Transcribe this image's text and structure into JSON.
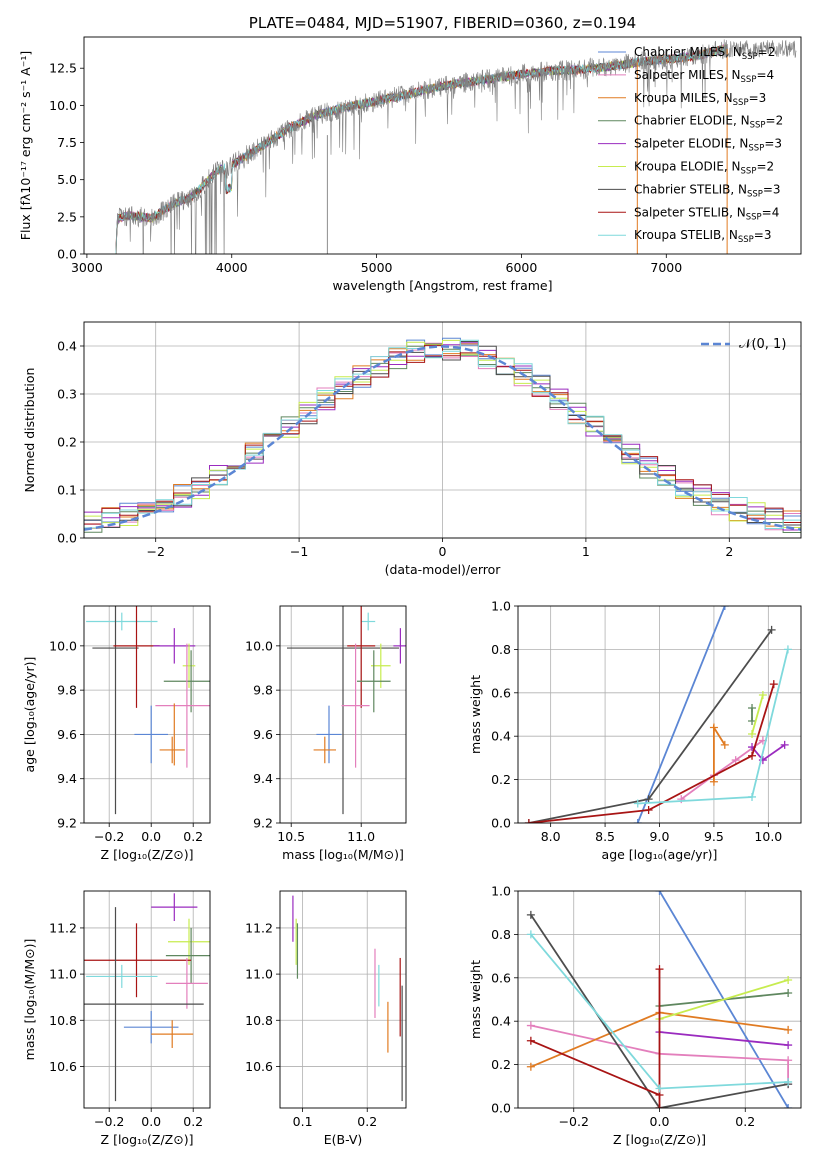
{
  "colors": {
    "c_miles": "#5b86d4",
    "s_miles": "#e37fbc",
    "k_miles": "#e07b22",
    "c_elodie": "#5f875f",
    "s_elodie": "#9a2bbf",
    "k_elodie": "#c7ec4f",
    "c_stelib": "#4d4d4d",
    "s_stelib": "#a81414",
    "k_stelib": "#7fd9dc",
    "spectrum": "#808080",
    "normal": "#5b86d4"
  },
  "chart_data": [
    {
      "id": "spectrum",
      "type": "line",
      "title": "PLATE=0484, MJD=51907, FIBERID=0360, z=0.194",
      "xlabel": "wavelength [Angstrom, rest frame]",
      "ylabel": "Flux [fλ10⁻¹⁷ erg cm⁻² s⁻¹ A⁻¹]",
      "xlim": [
        2980,
        7930
      ],
      "ylim": [
        0,
        14.6
      ],
      "xticks": [
        "3000",
        "4000",
        "5000",
        "6000",
        "7000"
      ],
      "yticks": [
        "0.0",
        "2.5",
        "5.0",
        "7.5",
        "10.0",
        "12.5"
      ],
      "legend_position": "top-right",
      "legend": [
        {
          "label": "Chabrier MILES, N",
          "sub": "SSP",
          "tail": "=2",
          "color": "c_miles"
        },
        {
          "label": "Salpeter MILES, N",
          "sub": "SSP",
          "tail": "=4",
          "color": "s_miles"
        },
        {
          "label": "Kroupa MILES, N",
          "sub": "SSP",
          "tail": "=3",
          "color": "k_miles"
        },
        {
          "label": "Chabrier ELODIE, N",
          "sub": "SSP",
          "tail": "=2",
          "color": "c_elodie"
        },
        {
          "label": "Salpeter ELODIE, N",
          "sub": "SSP",
          "tail": "=3",
          "color": "s_elodie"
        },
        {
          "label": "Kroupa ELODIE, N",
          "sub": "SSP",
          "tail": "=2",
          "color": "k_elodie"
        },
        {
          "label": "Chabrier STELIB, N",
          "sub": "SSP",
          "tail": "=3",
          "color": "c_stelib"
        },
        {
          "label": "Salpeter STELIB, N",
          "sub": "SSP",
          "tail": "=4",
          "color": "s_stelib"
        },
        {
          "label": "Kroupa STELIB, N",
          "sub": "SSP",
          "tail": "=3",
          "color": "k_stelib"
        }
      ],
      "continuum": {
        "x": [
          3200,
          3210,
          3300,
          3450,
          3550,
          3650,
          3720,
          3800,
          3900,
          4000,
          4200,
          4400,
          4600,
          4800,
          5000,
          5200,
          5400,
          5600,
          5800,
          6000,
          6200,
          6400,
          6600,
          6800,
          7000,
          7200,
          7400
        ],
        "y": [
          0,
          2.4,
          2.6,
          2.4,
          3.1,
          3.6,
          3.8,
          4.6,
          5.6,
          6.0,
          7.2,
          8.5,
          9.4,
          9.9,
          10.3,
          10.7,
          11.2,
          11.5,
          11.8,
          12.1,
          12.3,
          12.4,
          12.6,
          12.9,
          13.1,
          13.3,
          13.8
        ]
      }
    },
    {
      "id": "residuals",
      "type": "line",
      "xlabel": "(data-model)/error",
      "ylabel": "Normed distribution",
      "xlim": [
        -2.5,
        2.5
      ],
      "ylim": [
        0,
        0.45
      ],
      "xticks": [
        "−2",
        "−1",
        "0",
        "1",
        "2"
      ],
      "yticks": [
        "0.0",
        "0.1",
        "0.2",
        "0.3",
        "0.4"
      ],
      "grid": true,
      "legend_position": "top-right",
      "legend": [
        {
          "label": "𝒩(0, 1)",
          "color": "normal",
          "dashed": true
        }
      ],
      "histograms": {
        "bins": 40,
        "curves": [
          {
            "color": "c_miles",
            "seed": 1
          },
          {
            "color": "s_miles",
            "seed": 2
          },
          {
            "color": "k_miles",
            "seed": 3
          },
          {
            "color": "c_elodie",
            "seed": 4
          },
          {
            "color": "s_elodie",
            "seed": 5
          },
          {
            "color": "k_elodie",
            "seed": 6
          },
          {
            "color": "c_stelib",
            "seed": 7
          },
          {
            "color": "s_stelib",
            "seed": 8
          },
          {
            "color": "k_stelib",
            "seed": 9
          }
        ]
      }
    },
    {
      "id": "z_age",
      "type": "scatter",
      "xlabel": "Z [log₁₀(Z/Z⊙)]",
      "ylabel": "age  [log₁₀(age/yr)]",
      "xlim": [
        -0.32,
        0.28
      ],
      "ylim": [
        9.2,
        10.18
      ],
      "xticks": [
        "−0.2",
        "0.0",
        "0.2"
      ],
      "yticks": [
        "9.2",
        "9.4",
        "9.6",
        "9.8",
        "10.0"
      ],
      "grid": true,
      "points": [
        {
          "color": "k_stelib",
          "x": -0.14,
          "xerr": 0.17,
          "y": 10.11,
          "yerr": 0.04
        },
        {
          "color": "c_stelib",
          "x": -0.17,
          "xerr": 0.11,
          "y": 9.99,
          "yerr": 0.75
        },
        {
          "color": "s_stelib",
          "x": -0.07,
          "xerr": 0.11,
          "y": 10.0,
          "yerr": 0.28
        },
        {
          "color": "s_elodie",
          "x": 0.11,
          "xerr": 0.1,
          "y": 10.0,
          "yerr": 0.08
        },
        {
          "color": "k_elodie",
          "x": 0.18,
          "xerr": 0.03,
          "y": 9.91,
          "yerr": 0.1
        },
        {
          "color": "c_elodie",
          "x": 0.19,
          "xerr": 0.13,
          "y": 9.84,
          "yerr": 0.14
        },
        {
          "color": "s_miles",
          "x": 0.17,
          "xerr": 0.15,
          "y": 9.73,
          "yerr": 0.28
        },
        {
          "color": "c_miles",
          "x": 0.0,
          "xerr": 0.08,
          "y": 9.6,
          "yerr": 0.13
        },
        {
          "color": "k_miles",
          "x": 0.1,
          "xerr": 0.06,
          "y": 9.53,
          "yerr": 0.06
        },
        {
          "color": "k_miles",
          "x": 0.11,
          "xerr": 0.0,
          "y": 9.6,
          "yerr": 0.14
        }
      ]
    },
    {
      "id": "mass_age",
      "type": "scatter",
      "xlabel": "mass [log₁₀(M/M⊙)]",
      "ylabel": "",
      "xlim": [
        10.42,
        11.32
      ],
      "ylim": [
        9.2,
        10.18
      ],
      "xticks": [
        "10.5",
        "11.0"
      ],
      "yticks": [
        "9.2",
        "9.4",
        "9.6",
        "9.8",
        "10.0"
      ],
      "grid": true,
      "points": [
        {
          "color": "k_stelib",
          "x": 11.05,
          "xerr": 0.05,
          "y": 10.11,
          "yerr": 0.04
        },
        {
          "color": "c_stelib",
          "x": 10.87,
          "xerr": 0.4,
          "y": 9.99,
          "yerr": 0.75
        },
        {
          "color": "s_stelib",
          "x": 11.0,
          "xerr": 0.1,
          "y": 10.0,
          "yerr": 0.28
        },
        {
          "color": "s_elodie",
          "x": 11.28,
          "xerr": 0.05,
          "y": 10.0,
          "yerr": 0.08
        },
        {
          "color": "k_elodie",
          "x": 11.14,
          "xerr": 0.07,
          "y": 9.91,
          "yerr": 0.1
        },
        {
          "color": "c_elodie",
          "x": 11.09,
          "xerr": 0.12,
          "y": 9.84,
          "yerr": 0.14
        },
        {
          "color": "s_miles",
          "x": 10.96,
          "xerr": 0.1,
          "y": 9.73,
          "yerr": 0.28
        },
        {
          "color": "c_miles",
          "x": 10.77,
          "xerr": 0.09,
          "y": 9.6,
          "yerr": 0.13
        },
        {
          "color": "k_miles",
          "x": 10.74,
          "xerr": 0.08,
          "y": 9.53,
          "yerr": 0.06
        }
      ]
    },
    {
      "id": "age_weight",
      "type": "line",
      "xlabel": "age  [log₁₀(age/yr)]",
      "ylabel": "mass weight",
      "xlim": [
        7.7,
        10.3
      ],
      "ylim": [
        0,
        1.0
      ],
      "xticks": [
        "8.0",
        "8.5",
        "9.0",
        "9.5",
        "10.0"
      ],
      "yticks": [
        "0.0",
        "0.2",
        "0.4",
        "0.6",
        "0.8",
        "1.0"
      ],
      "grid": true,
      "series": [
        {
          "color": "c_miles",
          "x": [
            8.8,
            9.6
          ],
          "y": [
            0.0,
            1.0
          ]
        },
        {
          "color": "s_miles",
          "x": [
            9.2,
            9.5,
            9.7,
            9.95
          ],
          "y": [
            0.11,
            0.22,
            0.29,
            0.38
          ]
        },
        {
          "color": "k_miles",
          "x": [
            9.5,
            9.5,
            9.6
          ],
          "y": [
            0.19,
            0.44,
            0.36
          ]
        },
        {
          "color": "c_elodie",
          "x": [
            9.85,
            9.85
          ],
          "y": [
            0.47,
            0.53
          ]
        },
        {
          "color": "s_elodie",
          "x": [
            9.85,
            9.95,
            10.15
          ],
          "y": [
            0.35,
            0.29,
            0.36
          ]
        },
        {
          "color": "k_elodie",
          "x": [
            9.85,
            9.95
          ],
          "y": [
            0.41,
            0.59
          ]
        },
        {
          "color": "c_stelib",
          "x": [
            7.8,
            8.9,
            10.03
          ],
          "y": [
            0.0,
            0.11,
            0.89
          ]
        },
        {
          "color": "s_stelib",
          "x": [
            7.8,
            8.9,
            9.85,
            10.05
          ],
          "y": [
            0.0,
            0.06,
            0.31,
            0.64
          ]
        },
        {
          "color": "k_stelib",
          "x": [
            8.8,
            9.85,
            10.18
          ],
          "y": [
            0.09,
            0.12,
            0.8
          ]
        }
      ]
    },
    {
      "id": "z_mass",
      "type": "scatter",
      "xlabel": "Z [log₁₀(Z/Z⊙)]",
      "ylabel": "mass [log₁₀(M/M⊙)]",
      "xlim": [
        -0.32,
        0.28
      ],
      "ylim": [
        10.42,
        11.36
      ],
      "xticks": [
        "−0.2",
        "0.0",
        "0.2"
      ],
      "yticks": [
        "10.6",
        "10.8",
        "11.0",
        "11.2"
      ],
      "grid": true,
      "points": [
        {
          "color": "s_elodie",
          "x": 0.11,
          "xerr": 0.11,
          "y": 11.29,
          "yerr": 0.06
        },
        {
          "color": "k_elodie",
          "x": 0.18,
          "xerr": 0.1,
          "y": 11.14,
          "yerr": 0.1
        },
        {
          "color": "c_elodie",
          "x": 0.19,
          "xerr": 0.12,
          "y": 11.08,
          "yerr": 0.12
        },
        {
          "color": "s_stelib",
          "x": -0.07,
          "xerr": 0.26,
          "y": 11.06,
          "yerr": 0.16
        },
        {
          "color": "k_stelib",
          "x": -0.14,
          "xerr": 0.17,
          "y": 10.99,
          "yerr": 0.05
        },
        {
          "color": "s_miles",
          "x": 0.17,
          "xerr": 0.1,
          "y": 10.96,
          "yerr": 0.11
        },
        {
          "color": "c_stelib",
          "x": -0.17,
          "xerr": 0.42,
          "y": 10.87,
          "yerr": 0.42
        },
        {
          "color": "c_miles",
          "x": 0.0,
          "xerr": 0.13,
          "y": 10.77,
          "yerr": 0.07
        },
        {
          "color": "k_miles",
          "x": 0.1,
          "xerr": 0.1,
          "y": 10.74,
          "yerr": 0.06
        }
      ]
    },
    {
      "id": "ebv_mass",
      "type": "scatter",
      "xlabel": "E(B-V)",
      "ylabel": "",
      "xlim": [
        0.065,
        0.26
      ],
      "ylim": [
        10.42,
        11.36
      ],
      "xticks": [
        "0.1",
        "0.2"
      ],
      "yticks": [
        "10.6",
        "10.8",
        "11.0",
        "11.2"
      ],
      "grid": true,
      "points": [
        {
          "color": "s_elodie",
          "x": 0.085,
          "xerr": 0,
          "y": 11.24,
          "yerr": 0.1
        },
        {
          "color": "k_elodie",
          "x": 0.09,
          "xerr": 0,
          "y": 11.14,
          "yerr": 0.1
        },
        {
          "color": "c_elodie",
          "x": 0.092,
          "xerr": 0,
          "y": 11.1,
          "yerr": 0.12
        },
        {
          "color": "s_miles",
          "x": 0.212,
          "xerr": 0,
          "y": 10.96,
          "yerr": 0.15
        },
        {
          "color": "k_stelib",
          "x": 0.218,
          "xerr": 0,
          "y": 10.95,
          "yerr": 0.09
        },
        {
          "color": "k_miles",
          "x": 0.232,
          "xerr": 0,
          "y": 10.77,
          "yerr": 0.11
        },
        {
          "color": "s_stelib",
          "x": 0.251,
          "xerr": 0,
          "y": 10.9,
          "yerr": 0.17
        },
        {
          "color": "c_stelib",
          "x": 0.254,
          "xerr": 0,
          "y": 10.7,
          "yerr": 0.25
        }
      ]
    },
    {
      "id": "z_weight",
      "type": "line",
      "xlabel": "Z [log₁₀(Z/Z⊙)]",
      "ylabel": "mass weight",
      "xlim": [
        -0.33,
        0.33
      ],
      "ylim": [
        0,
        1.0
      ],
      "xticks": [
        "−0.2",
        "0.0",
        "0.2"
      ],
      "yticks": [
        "0.0",
        "0.2",
        "0.4",
        "0.6",
        "0.8",
        "1.0"
      ],
      "grid": true,
      "series": [
        {
          "color": "c_miles",
          "x": [
            0.0,
            0.3
          ],
          "y": [
            1.0,
            0.0
          ]
        },
        {
          "color": "s_miles",
          "x": [
            -0.3,
            0.0,
            0.3,
            0.3
          ],
          "y": [
            0.38,
            0.25,
            0.22,
            0.11
          ]
        },
        {
          "color": "k_miles",
          "x": [
            -0.3,
            0.0,
            0.3
          ],
          "y": [
            0.19,
            0.44,
            0.36
          ]
        },
        {
          "color": "c_elodie",
          "x": [
            0.0,
            0.3
          ],
          "y": [
            0.47,
            0.53
          ]
        },
        {
          "color": "s_elodie",
          "x": [
            0.0,
            0.3
          ],
          "y": [
            0.35,
            0.29
          ]
        },
        {
          "color": "k_elodie",
          "x": [
            0.0,
            0.3
          ],
          "y": [
            0.41,
            0.59
          ]
        },
        {
          "color": "c_stelib",
          "x": [
            -0.3,
            0.0,
            0.3
          ],
          "y": [
            0.89,
            0.0,
            0.11
          ]
        },
        {
          "color": "s_stelib",
          "x": [
            -0.3,
            0.0,
            0.0,
            0.0
          ],
          "y": [
            0.31,
            0.06,
            0.64,
            0.0
          ]
        },
        {
          "color": "k_stelib",
          "x": [
            -0.3,
            0.0,
            0.3
          ],
          "y": [
            0.8,
            0.09,
            0.12
          ]
        }
      ]
    }
  ]
}
